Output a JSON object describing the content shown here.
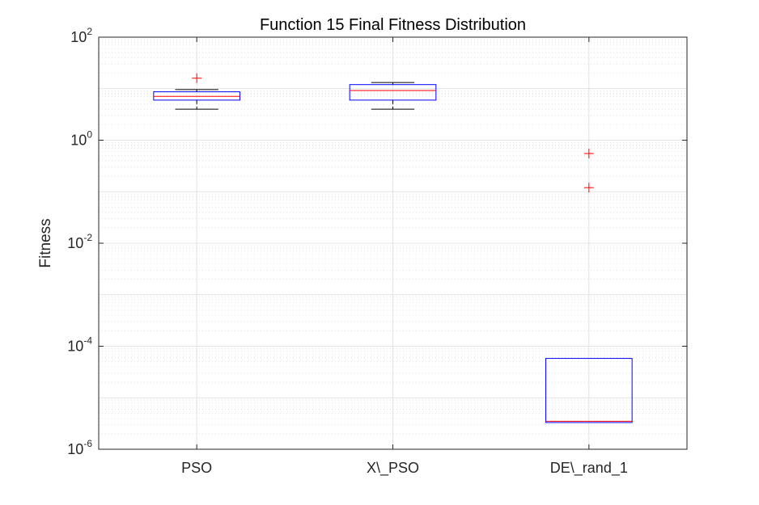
{
  "chart_data": {
    "type": "boxplot",
    "title": "Function 15 Final Fitness Distribution",
    "xlabel": "",
    "ylabel": "Fitness",
    "yscale": "log",
    "ylim": [
      1e-06,
      100
    ],
    "yticks": [
      {
        "value": 1e-06,
        "base": "10",
        "exp": "-6"
      },
      {
        "value": 0.0001,
        "base": "10",
        "exp": "-4"
      },
      {
        "value": 0.01,
        "base": "10",
        "exp": "-2"
      },
      {
        "value": 1,
        "base": "10",
        "exp": "0"
      },
      {
        "value": 100,
        "base": "10",
        "exp": "2"
      }
    ],
    "grid": true,
    "categories": [
      "PSO",
      "X\\_PSO",
      "DE\\_rand_1"
    ],
    "boxes": [
      {
        "category": "PSO",
        "whisker_low": 4.0,
        "q1": 6.0,
        "median": 7.1,
        "q3": 8.7,
        "whisker_high": 9.6,
        "outliers": [
          16.0
        ]
      },
      {
        "category": "X\\_PSO",
        "whisker_low": 4.0,
        "q1": 6.0,
        "median": 9.2,
        "q3": 12.0,
        "whisker_high": 13.2,
        "outliers": []
      },
      {
        "category": "DE\\_rand_1",
        "whisker_low": 3.3e-06,
        "q1": 3.3e-06,
        "median": 3.5e-06,
        "q3": 5.8e-05,
        "whisker_high": 5.8e-05,
        "outliers": [
          0.12,
          0.55
        ]
      }
    ],
    "colors": {
      "box": "#0000ff",
      "median": "#ff0000",
      "whisker": "#000000",
      "outlier": "#ff0000",
      "grid": "#dcdcdc",
      "axis": "#262626"
    }
  }
}
